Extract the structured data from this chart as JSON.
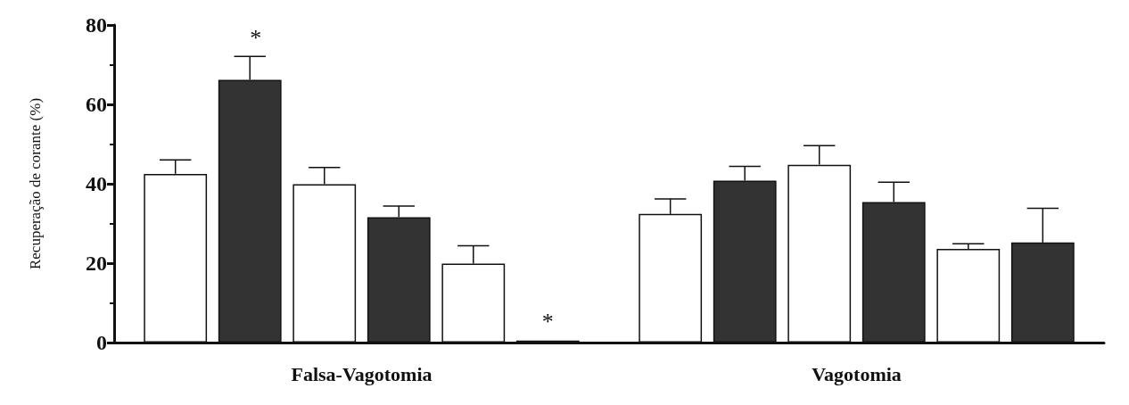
{
  "chart_data": {
    "type": "bar",
    "ylabel": "Recuperação de corante (%)",
    "categories": [
      "Falsa-Vagotomia",
      "Vagotomia"
    ],
    "series": [
      {
        "color": "#ffffff",
        "values": [
          42.5,
          32.4
        ],
        "errors": [
          [
            42.5,
            46
          ],
          [
            32.4,
            36.2
          ]
        ]
      },
      {
        "color": "#333333",
        "values": [
          66.2,
          40.8
        ],
        "errors": [
          [
            66.2,
            72.1
          ],
          [
            40.8,
            44.4
          ]
        ],
        "value_labels": [
          "*",
          null
        ]
      },
      {
        "color": "#ffffff",
        "values": [
          39.9,
          44.8
        ],
        "errors": [
          [
            39.9,
            44.1
          ],
          [
            44.8,
            49.6
          ]
        ]
      },
      {
        "color": "#333333",
        "values": [
          31.6,
          35.4
        ],
        "errors": [
          [
            31.6,
            34.4
          ],
          [
            35.4,
            40.4
          ]
        ]
      },
      {
        "color": "#ffffff",
        "values": [
          19.9,
          23.6
        ],
        "errors": [
          [
            19.9,
            24.4
          ],
          [
            23.6,
            24.9
          ]
        ]
      },
      {
        "color": "#333333",
        "values": [
          0.5,
          25.2
        ],
        "errors": [
          null,
          [
            25.2,
            33.8
          ]
        ],
        "value_labels": [
          "*",
          null
        ]
      }
    ],
    "ylim": [
      0,
      80
    ],
    "yticks": [
      0,
      20,
      40,
      60,
      80
    ],
    "grid": false
  }
}
